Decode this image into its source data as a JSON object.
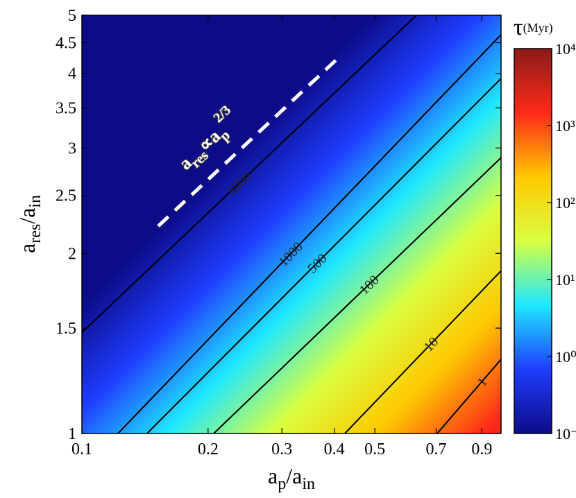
{
  "chart_data": {
    "type": "heatmap",
    "x_label": [
      "a",
      "p",
      "/a",
      "in"
    ],
    "y_label": [
      "a",
      "res",
      "/a",
      "in"
    ],
    "colorbar_label": [
      "τ",
      "(Myr)"
    ],
    "annotation": [
      "a",
      "res",
      "∝",
      "a",
      "p",
      "2/3"
    ],
    "xlim": [
      0.1,
      1.0
    ],
    "xticks": [
      0.1,
      0.2,
      0.3,
      0.4,
      0.5,
      0.7,
      0.9
    ],
    "xscale": "log",
    "ylim": [
      1,
      5
    ],
    "yticks": [
      1,
      1.5,
      2,
      2.5,
      3,
      3.5,
      4,
      4.5,
      5
    ],
    "yscale": "log",
    "clim": [
      0.1,
      10000
    ],
    "cticks": [
      {
        "value": 0.1,
        "label": "10⁻¹"
      },
      {
        "value": 1,
        "label": "10⁰"
      },
      {
        "value": 10,
        "label": "10¹"
      },
      {
        "value": 100,
        "label": "10²"
      },
      {
        "value": 1000,
        "label": "10³"
      },
      {
        "value": 10000,
        "label": "10⁴"
      }
    ],
    "colormap": [
      "#0c0c88",
      "#1f3dff",
      "#1ee8ff",
      "#d9ff40",
      "#ffc800",
      "#ff2a1a",
      "#8b1a1a"
    ],
    "contours": [
      {
        "level": 5000,
        "x": [
          0.1,
          0.628
        ],
        "y": [
          1.475,
          5
        ]
      },
      {
        "level": 1000,
        "x": [
          0.1219,
          1.0
        ],
        "y": [
          1,
          4.64
        ]
      },
      {
        "level": 500,
        "x": [
          0.143,
          1.0
        ],
        "y": [
          1,
          3.92
        ]
      },
      {
        "level": 100,
        "x": [
          0.2063,
          1.0
        ],
        "y": [
          1,
          2.89
        ]
      },
      {
        "level": 10,
        "x": [
          0.424,
          1.0
        ],
        "y": [
          1,
          1.87
        ]
      },
      {
        "level": 1,
        "x": [
          0.704,
          1.0
        ],
        "y": [
          1,
          1.33
        ]
      }
    ]
  }
}
